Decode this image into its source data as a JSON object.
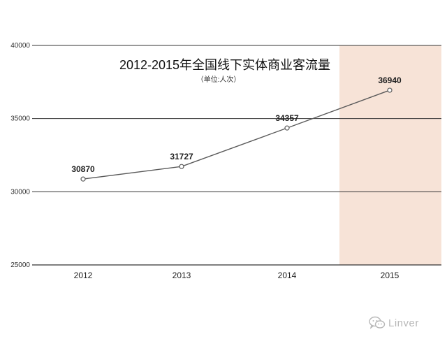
{
  "chart_data": {
    "type": "line",
    "title": "2012-2015年全国线下实体商业客流量",
    "subtitle": "（单位:人次）",
    "categories": [
      "2012",
      "2013",
      "2014",
      "2015"
    ],
    "series": [
      {
        "values": [
          30870,
          31727,
          34357,
          36940
        ]
      }
    ],
    "data_labels": [
      "30870",
      "31727",
      "34357",
      "36940"
    ],
    "yticks": [
      "40000",
      "35000",
      "30000",
      "25000"
    ],
    "ylim": [
      25000,
      40000
    ],
    "highlight_category": "2015",
    "colors": {
      "line": "#5a5a5a",
      "highlight": "#f7e3d7",
      "grid": "#333333"
    }
  },
  "watermark": {
    "text": "Linver",
    "icon": "wechat-icon"
  }
}
